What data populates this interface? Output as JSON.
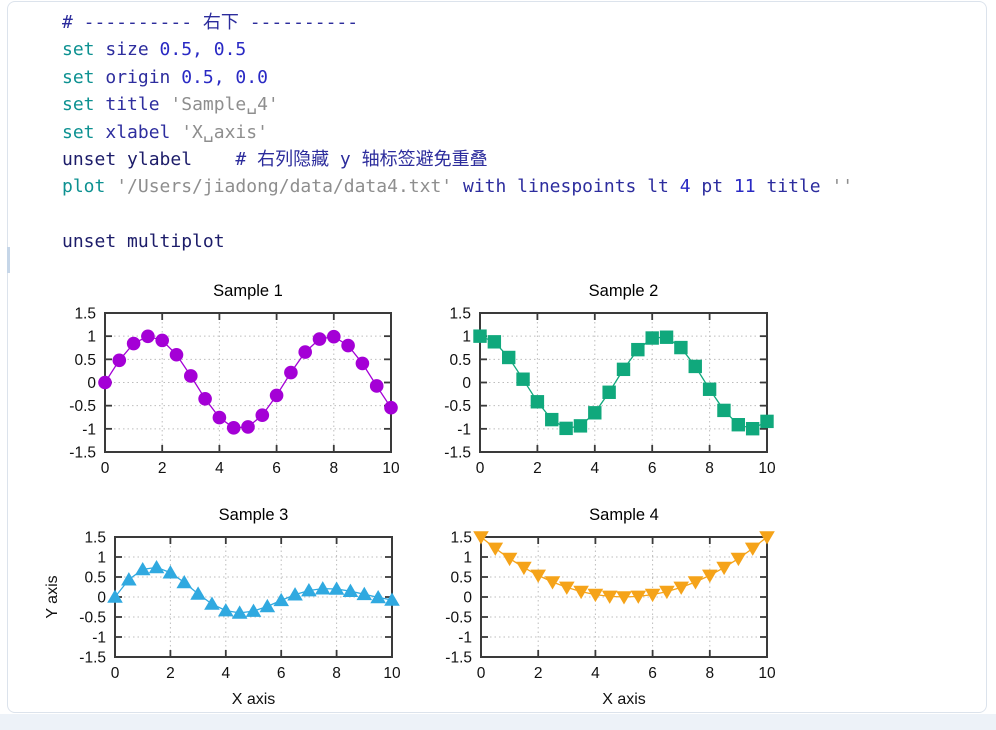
{
  "page": {
    "background": "#ffffff",
    "bottom_band_color": "#edf2f8",
    "container_border": "#dce3ec",
    "cell_indicator_color": "#c6d6e8"
  },
  "code": {
    "colors": {
      "kw": "#0d9191",
      "id": "#2d2d9e",
      "num": "#2929c4",
      "str": "#8e8e8e",
      "comment": "#2c2c9c",
      "un": "#1c1c69",
      "plain": "#222222"
    },
    "lines": [
      [
        {
          "t": "# ---------- 右下 ----------",
          "c": "comment"
        }
      ],
      [
        {
          "t": "set ",
          "c": "kw"
        },
        {
          "t": "size ",
          "c": "id"
        },
        {
          "t": "0.5, 0.5",
          "c": "num"
        }
      ],
      [
        {
          "t": "set ",
          "c": "kw"
        },
        {
          "t": "origin ",
          "c": "id"
        },
        {
          "t": "0.5, 0.0",
          "c": "num"
        }
      ],
      [
        {
          "t": "set ",
          "c": "kw"
        },
        {
          "t": "title ",
          "c": "id"
        },
        {
          "t": "'Sample␣4'",
          "c": "str"
        }
      ],
      [
        {
          "t": "set ",
          "c": "kw"
        },
        {
          "t": "xlabel ",
          "c": "id"
        },
        {
          "t": "'X␣axis'",
          "c": "str"
        }
      ],
      [
        {
          "t": "unset ylabel",
          "c": "un"
        },
        {
          "t": "    ",
          "c": "plain"
        },
        {
          "t": "# 右列隐藏 y 轴标签避免重叠",
          "c": "comment"
        }
      ],
      [
        {
          "t": "plot ",
          "c": "kw"
        },
        {
          "t": "'/Users/jiadong/data/data4.txt'",
          "c": "str"
        },
        {
          "t": " with linespoints lt ",
          "c": "id"
        },
        {
          "t": "4",
          "c": "num"
        },
        {
          "t": " pt ",
          "c": "id"
        },
        {
          "t": "11",
          "c": "num"
        },
        {
          "t": " title ",
          "c": "id"
        },
        {
          "t": "''",
          "c": "str"
        }
      ],
      [],
      [
        {
          "t": "unset multiplot",
          "c": "un"
        }
      ]
    ]
  },
  "chart_data": [
    {
      "type": "line",
      "title": "Sample 1",
      "marker": "circle",
      "color": "#a400d6",
      "xlabel": "",
      "ylabel": "",
      "xlim": [
        0,
        10
      ],
      "ylim": [
        -1.5,
        1.5
      ],
      "xticks": [
        0,
        2,
        4,
        6,
        8,
        10
      ],
      "xtick_labels": [
        "0",
        "2",
        "4",
        "6",
        "8",
        "10"
      ],
      "yticks": [
        -1.5,
        -1,
        -0.5,
        0,
        0.5,
        1,
        1.5
      ],
      "ytick_labels": [
        "-1.5",
        "-1",
        "-0.5",
        "0",
        "0.5",
        "1",
        "1.5"
      ],
      "grid": true,
      "legend": "none",
      "x": [
        0,
        0.5,
        1,
        1.5,
        2,
        2.5,
        3,
        3.5,
        4,
        4.5,
        5,
        5.5,
        6,
        6.5,
        7,
        7.5,
        8,
        8.5,
        9,
        9.5,
        10
      ],
      "y": [
        0,
        0.479,
        0.841,
        0.997,
        0.909,
        0.599,
        0.141,
        -0.351,
        -0.757,
        -0.978,
        -0.959,
        -0.706,
        -0.279,
        0.215,
        0.657,
        0.938,
        0.989,
        0.798,
        0.412,
        -0.075,
        -0.544
      ]
    },
    {
      "type": "line",
      "title": "Sample 2",
      "marker": "square",
      "color": "#10a87c",
      "xlabel": "",
      "ylabel": "",
      "xlim": [
        0,
        10
      ],
      "ylim": [
        -1.5,
        1.5
      ],
      "xticks": [
        0,
        2,
        4,
        6,
        8,
        10
      ],
      "xtick_labels": [
        "0",
        "2",
        "4",
        "6",
        "8",
        "10"
      ],
      "yticks": [
        -1.5,
        -1,
        -0.5,
        0,
        0.5,
        1,
        1.5
      ],
      "ytick_labels": [
        "-1.5",
        "-1",
        "-0.5",
        "0",
        "0.5",
        "1",
        "1.5"
      ],
      "grid": true,
      "legend": "none",
      "x": [
        0,
        0.5,
        1,
        1.5,
        2,
        2.5,
        3,
        3.5,
        4,
        4.5,
        5,
        5.5,
        6,
        6.5,
        7,
        7.5,
        8,
        8.5,
        9,
        9.5,
        10
      ],
      "y": [
        1,
        0.878,
        0.54,
        0.071,
        -0.416,
        -0.801,
        -0.99,
        -0.936,
        -0.654,
        -0.211,
        0.284,
        0.709,
        0.96,
        0.977,
        0.754,
        0.347,
        -0.146,
        -0.602,
        -0.911,
        -0.997,
        -0.839
      ]
    },
    {
      "type": "line",
      "title": "Sample 3",
      "marker": "triangle-up",
      "color": "#30a9e0",
      "xlabel": "X axis",
      "ylabel": "Y axis",
      "xlim": [
        0,
        10
      ],
      "ylim": [
        -1.5,
        1.5
      ],
      "xticks": [
        0,
        2,
        4,
        6,
        8,
        10
      ],
      "xtick_labels": [
        "0",
        "2",
        "4",
        "6",
        "8",
        "10"
      ],
      "yticks": [
        -1.5,
        -1,
        -0.5,
        0,
        0.5,
        1,
        1.5
      ],
      "ytick_labels": [
        "-1.5",
        "-1",
        "-0.5",
        "0",
        "0.5",
        "1",
        "1.5"
      ],
      "grid": true,
      "legend": "none",
      "x": [
        0,
        0.5,
        1,
        1.5,
        2,
        2.5,
        3,
        3.5,
        4,
        4.5,
        5,
        5.5,
        6,
        6.5,
        7,
        7.5,
        8,
        8.5,
        9,
        9.5,
        10
      ],
      "y": [
        0,
        0.434,
        0.689,
        0.739,
        0.609,
        0.363,
        0.077,
        -0.174,
        -0.34,
        -0.398,
        -0.353,
        -0.235,
        -0.084,
        0.059,
        0.162,
        0.209,
        0.2,
        0.146,
        0.068,
        -0.011,
        -0.074
      ]
    },
    {
      "type": "line",
      "title": "Sample 4",
      "marker": "triangle-down",
      "color": "#f5a319",
      "xlabel": "X axis",
      "ylabel": "",
      "xlim": [
        0,
        10
      ],
      "ylim": [
        -1.5,
        1.5
      ],
      "xticks": [
        0,
        2,
        4,
        6,
        8,
        10
      ],
      "xtick_labels": [
        "0",
        "2",
        "4",
        "6",
        "8",
        "10"
      ],
      "yticks": [
        -1.5,
        -1,
        -0.5,
        0,
        0.5,
        1,
        1.5
      ],
      "ytick_labels": [
        "-1.5",
        "-1",
        "-0.5",
        "0",
        "0.5",
        "1",
        "1.5"
      ],
      "grid": true,
      "legend": "none",
      "x": [
        0,
        0.5,
        1,
        1.5,
        2,
        2.5,
        3,
        3.5,
        4,
        4.5,
        5,
        5.5,
        6,
        6.5,
        7,
        7.5,
        8,
        8.5,
        9,
        9.5,
        10
      ],
      "y": [
        1.5,
        1.215,
        0.96,
        0.735,
        0.54,
        0.375,
        0.24,
        0.135,
        0.06,
        0.015,
        0,
        0.015,
        0.06,
        0.135,
        0.24,
        0.375,
        0.54,
        0.735,
        0.96,
        1.215,
        1.5
      ]
    }
  ]
}
